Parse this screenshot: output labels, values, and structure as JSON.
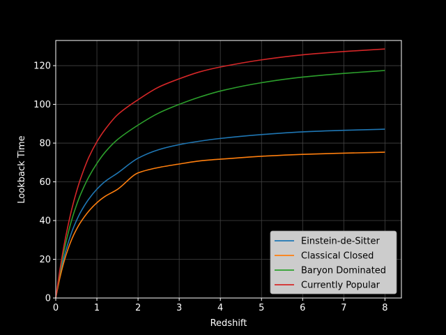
{
  "chart_data": {
    "type": "line",
    "title": "",
    "xlabel": "Redshift",
    "ylabel": "Lookback Time",
    "xlim": [
      0,
      8.4
    ],
    "ylim": [
      0,
      133
    ],
    "xticks": [
      0,
      1,
      2,
      3,
      4,
      5,
      6,
      7,
      8
    ],
    "yticks": [
      0,
      20,
      40,
      60,
      80,
      100,
      120
    ],
    "grid": true,
    "legend_position": "lower-right",
    "background": "#000000",
    "foreground": "#ffffff",
    "x": [
      0,
      0.1,
      0.2,
      0.3,
      0.4,
      0.5,
      0.6,
      0.8,
      1.0,
      1.2,
      1.5,
      2.0,
      2.5,
      3.0,
      3.5,
      4.0,
      5.0,
      6.0,
      7.0,
      8.0
    ],
    "series": [
      {
        "name": "Einstein-de-Sitter",
        "color": "#1f77b4",
        "values": [
          0,
          11.5,
          20.9,
          28.4,
          34.7,
          39.8,
          44.2,
          51.0,
          56.2,
          60.2,
          64.5,
          72.2,
          76.6,
          79.2,
          81.0,
          82.4,
          84.4,
          85.8,
          86.6,
          87.2
        ]
      },
      {
        "name": "Classical Closed",
        "color": "#ff7f0e",
        "values": [
          0,
          10.4,
          18.7,
          25.4,
          30.9,
          35.3,
          39.0,
          44.8,
          49.2,
          52.5,
          56.1,
          64.6,
          67.4,
          69.2,
          70.8,
          71.7,
          73.2,
          74.2,
          74.8,
          75.3
        ]
      },
      {
        "name": "Baryon Dominated",
        "color": "#2ca02c",
        "values": [
          0,
          13.0,
          24.2,
          33.4,
          41.2,
          47.7,
          53.3,
          62.4,
          69.5,
          75.3,
          81.8,
          89.3,
          95.5,
          100.0,
          103.8,
          106.9,
          111.2,
          114.1,
          116.0,
          117.5
        ]
      },
      {
        "name": "Currently Popular",
        "color": "#d62728",
        "values": [
          0,
          14.4,
          27.0,
          37.6,
          46.8,
          54.6,
          61.4,
          72.5,
          80.7,
          87.1,
          94.6,
          102.4,
          108.9,
          113.2,
          116.8,
          119.3,
          123.0,
          125.6,
          127.3,
          128.6
        ]
      }
    ]
  }
}
